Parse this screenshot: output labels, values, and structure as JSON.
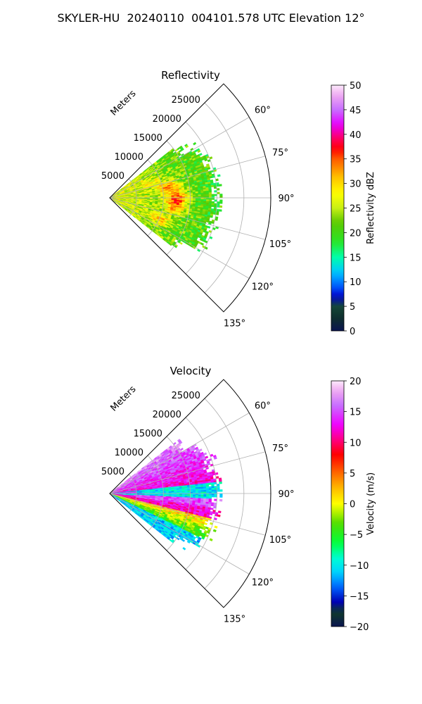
{
  "figure": {
    "suptitle": "SKYLER-HU  20240110  004101.578 UTC Elevation 12°"
  },
  "chart_data": [
    {
      "type": "heatmap",
      "projection": "polar-sector",
      "title": "Reflectivity",
      "range_label": "Meters",
      "range_ticks": [
        5000,
        10000,
        15000,
        20000,
        25000
      ],
      "range_tick_labels": [
        "5000",
        "10000",
        "15000",
        "20000",
        "25000"
      ],
      "range_max": 30000,
      "azimuth_ticks": [
        60,
        75,
        90,
        105,
        120,
        135
      ],
      "azimuth_tick_labels": [
        "60°",
        "75°",
        "90°",
        "105°",
        "120°",
        "135°"
      ],
      "azimuth_range": [
        45,
        135
      ],
      "grid": true,
      "colorbar": {
        "label": "Reflectivity dBZ",
        "vmin": 0,
        "vmax": 50,
        "ticks": [
          0,
          5,
          10,
          15,
          20,
          25,
          30,
          35,
          40,
          45,
          50
        ],
        "tick_labels": [
          "0",
          "5",
          "10",
          "15",
          "20",
          "25",
          "30",
          "35",
          "40",
          "45",
          "50"
        ]
      },
      "data_extent": {
        "azimuth_deg": [
          52,
          128
        ],
        "range_m": [
          0,
          20000
        ]
      },
      "features": [
        {
          "azimuth_deg": 80,
          "range_m": 11000,
          "value_dbz": 35
        },
        {
          "azimuth_deg": 90,
          "range_m": 13000,
          "value_dbz": 36
        },
        {
          "azimuth_deg": 98,
          "range_m": 12000,
          "value_dbz": 34
        },
        {
          "azimuth_deg": 112,
          "range_m": 10000,
          "value_dbz": 33
        }
      ]
    },
    {
      "type": "heatmap",
      "projection": "polar-sector",
      "title": "Velocity",
      "range_label": "Meters",
      "range_ticks": [
        5000,
        10000,
        15000,
        20000,
        25000
      ],
      "range_tick_labels": [
        "5000",
        "10000",
        "15000",
        "20000",
        "25000"
      ],
      "range_max": 30000,
      "azimuth_ticks": [
        60,
        75,
        90,
        105,
        120,
        135
      ],
      "azimuth_tick_labels": [
        "60°",
        "75°",
        "90°",
        "105°",
        "120°",
        "135°"
      ],
      "azimuth_range": [
        45,
        135
      ],
      "grid": true,
      "colorbar": {
        "label": "Velocity (m/s)",
        "vmin": -20,
        "vmax": 20,
        "ticks": [
          -20,
          -15,
          -10,
          -5,
          0,
          5,
          10,
          15,
          20
        ],
        "tick_labels": [
          "−20",
          "−15",
          "−10",
          "−5",
          "0",
          "5",
          "10",
          "15",
          "20"
        ]
      },
      "data_extent": {
        "azimuth_deg": [
          52,
          128
        ],
        "range_m": [
          0,
          20000
        ]
      },
      "features": [
        {
          "azimuth_deg": 68,
          "range_m": 14000,
          "value_ms": 14
        },
        {
          "azimuth_deg": 92,
          "range_m": 10000,
          "value_ms": -10
        },
        {
          "azimuth_deg": 100,
          "range_m": 9000,
          "value_ms": 12
        },
        {
          "azimuth_deg": 112,
          "range_m": 10000,
          "value_ms": 3
        },
        {
          "azimuth_deg": 120,
          "range_m": 9000,
          "value_ms": -12
        }
      ]
    }
  ]
}
